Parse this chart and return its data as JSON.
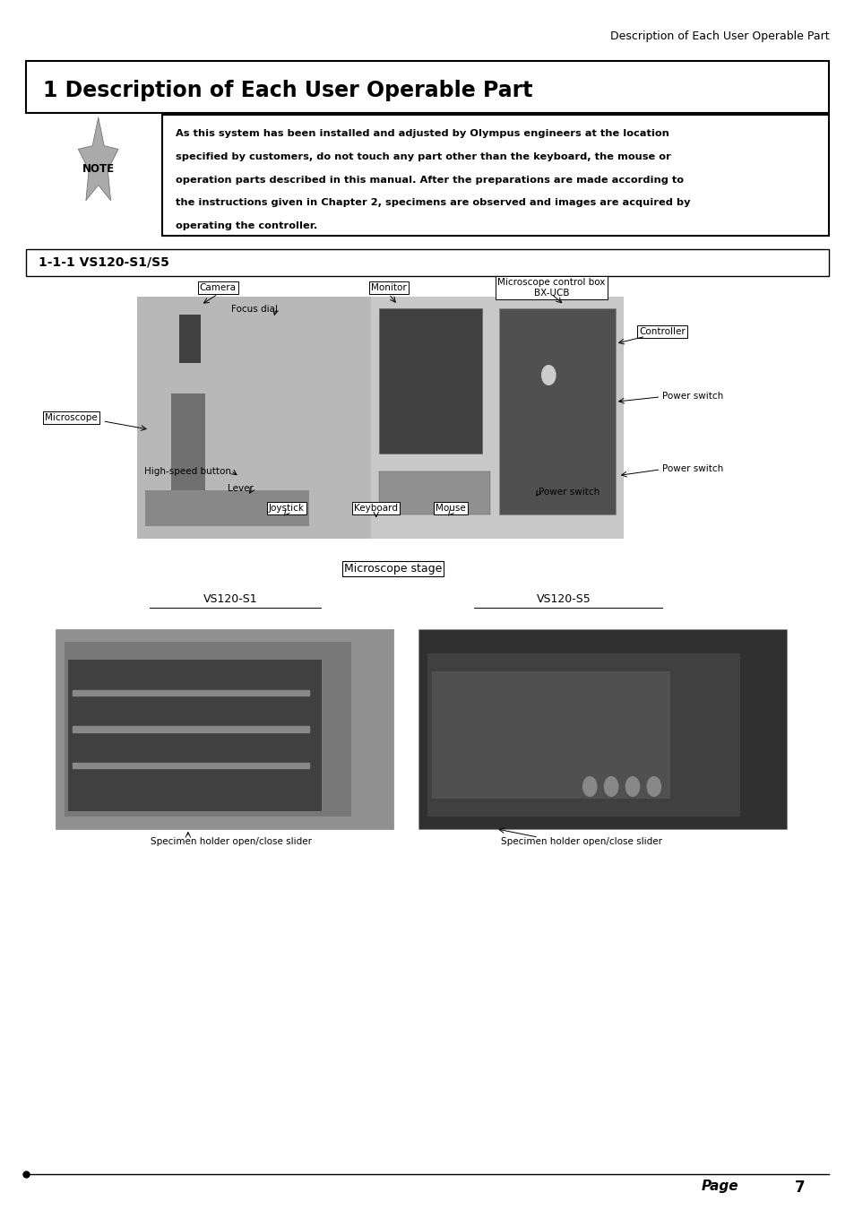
{
  "page_title": "Description of Each User Operable Part",
  "section_title": "1 Description of Each User Operable Part",
  "note_lines": [
    "As this system has been installed and adjusted by Olympus engineers at the location",
    "specified by customers, do not touch any part other than the keyboard, the mouse or",
    "operation parts described in this manual. After the preparations are made according to",
    "the instructions given in Chapter 2, specimens are observed and images are acquired by",
    "operating the controller."
  ],
  "section_11_title": "1-1-1 VS120-S1/S5",
  "microscope_stage_label": "Microscope stage",
  "vs120_s1_label": "VS120-S1",
  "vs120_s5_label": "VS120-S5",
  "specimen_s1_label": "Specimen holder open/close slider",
  "specimen_s5_label": "Specimen holder open/close slider",
  "page_number": "7",
  "bg_color": "#ffffff"
}
